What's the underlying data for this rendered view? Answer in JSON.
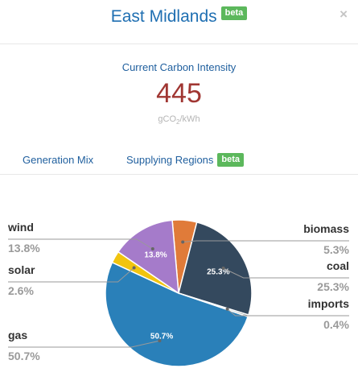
{
  "header": {
    "title": "East Midlands",
    "badge": "beta",
    "close_label": "×"
  },
  "intensity": {
    "label": "Current Carbon Intensity",
    "value": "445",
    "unit_prefix": "gCO",
    "unit_sub": "2",
    "unit_suffix": "/kWh"
  },
  "tabs": [
    {
      "label": "Generation Mix"
    },
    {
      "label": "Supplying Regions",
      "badge": "beta"
    }
  ],
  "colors": {
    "biomass": "#e07b39",
    "coal": "#34495e",
    "imports": "#7f8c8d",
    "gas": "#2a80b9",
    "solar": "#f1c40f",
    "wind": "#a57bca"
  },
  "chart_data": {
    "type": "pie",
    "slices": [
      {
        "name": "biomass",
        "value": 5.3,
        "label": "5.3%",
        "inner_label": "",
        "color": "#e07b39"
      },
      {
        "name": "coal",
        "value": 25.3,
        "label": "25.3%",
        "inner_label": "25.3%",
        "color": "#34495e"
      },
      {
        "name": "imports",
        "value": 0.4,
        "label": "0.4%",
        "inner_label": "",
        "color": "#7f8c8d"
      },
      {
        "name": "gas",
        "value": 50.7,
        "label": "50.7%",
        "inner_label": "50.7%",
        "color": "#2a80b9"
      },
      {
        "name": "solar",
        "value": 2.6,
        "label": "2.6%",
        "inner_label": "",
        "color": "#f1c40f"
      },
      {
        "name": "wind",
        "value": 13.8,
        "label": "13.8%",
        "inner_label": "13.8%",
        "color": "#a57bca"
      }
    ]
  }
}
